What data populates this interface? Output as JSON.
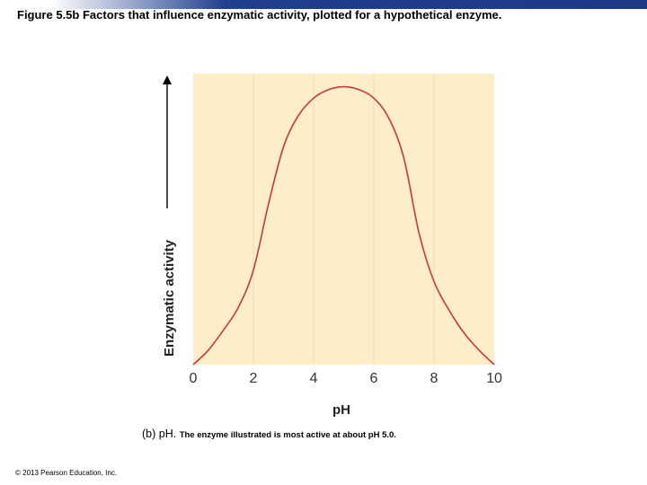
{
  "title": "Figure 5.5b Factors that influence enzymatic activity, plotted for a hypothetical enzyme.",
  "caption": {
    "label": "(b) pH.",
    "text": "The enzyme illustrated is most active at about pH 5.0."
  },
  "copyright": "© 2013 Pearson Education, Inc.",
  "colors": {
    "plot_background": "#fdedc8",
    "curve": "#c8373c",
    "gridline": "#e7dcc0",
    "header_bar": "#1f3f8f"
  },
  "chart_data": {
    "type": "line",
    "xlabel": "pH",
    "ylabel": "Enzymatic activity",
    "xlim": [
      0,
      10
    ],
    "ylim": [
      0,
      1
    ],
    "xticks": [
      0,
      2,
      4,
      6,
      8,
      10
    ],
    "y_tick_labels": false,
    "grid": "vertical",
    "series": [
      {
        "x": [
          0,
          0.5,
          1,
          1.5,
          2,
          2.5,
          3,
          3.5,
          4,
          4.5,
          5,
          5.5,
          6,
          6.5,
          7,
          7.5,
          8,
          8.5,
          9,
          9.5,
          10
        ],
        "y": [
          0.0,
          0.05,
          0.12,
          0.2,
          0.33,
          0.56,
          0.76,
          0.87,
          0.93,
          0.96,
          0.97,
          0.96,
          0.93,
          0.86,
          0.72,
          0.46,
          0.29,
          0.19,
          0.11,
          0.05,
          0.0
        ]
      }
    ]
  }
}
